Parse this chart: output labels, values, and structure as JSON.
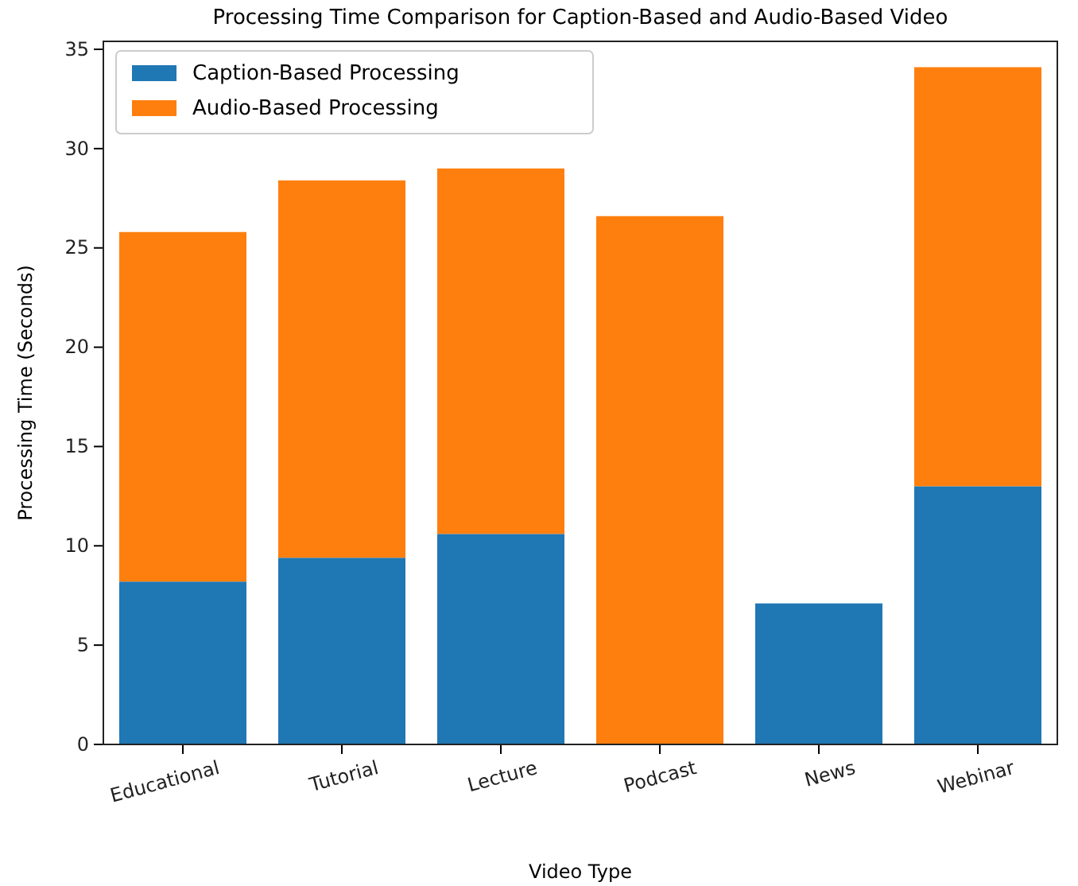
{
  "chart_data": {
    "type": "bar",
    "title": "Processing Time Comparison for Caption-Based and Audio-Based Video",
    "xlabel": "Video Type",
    "ylabel": "Processing Time (Seconds)",
    "categories": [
      "Educational",
      "Tutorial",
      "Lecture",
      "Podcast",
      "News",
      "Webinar"
    ],
    "series": [
      {
        "name": "Caption-Based Processing",
        "color": "#1f77b4",
        "values": [
          8.2,
          9.4,
          10.6,
          0,
          7.1,
          13.0
        ]
      },
      {
        "name": "Audio-Based Processing",
        "color": "#ff7f0e",
        "values": [
          17.6,
          19.0,
          18.4,
          26.6,
          0,
          21.1
        ]
      }
    ],
    "stacked": true,
    "ylim": [
      0,
      35.4
    ],
    "yticks": [
      0,
      5,
      10,
      15,
      20,
      25,
      30,
      35
    ],
    "legend": "top left"
  }
}
